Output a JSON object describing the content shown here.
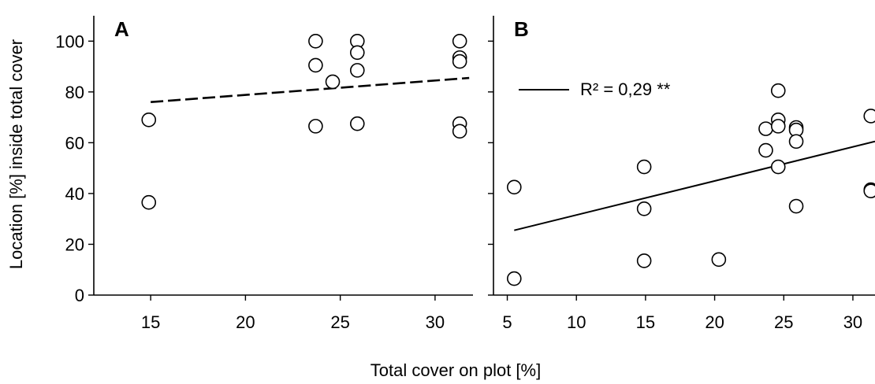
{
  "chart_data": {
    "type": "scatter",
    "xlabel": "Total cover on plot [%]",
    "ylabel": "Location [%] inside total cover",
    "panels": [
      {
        "label": "A",
        "xlim": [
          12,
          32
        ],
        "ylim": [
          0,
          110
        ],
        "xticks": [
          15,
          20,
          25,
          30
        ],
        "yticks": [
          0,
          20,
          40,
          60,
          80,
          100
        ],
        "points": [
          {
            "x": 14.9,
            "y": 69
          },
          {
            "x": 14.9,
            "y": 36.5
          },
          {
            "x": 23.7,
            "y": 100
          },
          {
            "x": 23.7,
            "y": 90.5
          },
          {
            "x": 23.7,
            "y": 66.5
          },
          {
            "x": 24.6,
            "y": 84
          },
          {
            "x": 25.9,
            "y": 100
          },
          {
            "x": 25.9,
            "y": 95.5
          },
          {
            "x": 25.9,
            "y": 88.5
          },
          {
            "x": 25.9,
            "y": 67.5
          },
          {
            "x": 31.3,
            "y": 100
          },
          {
            "x": 31.3,
            "y": 93.5
          },
          {
            "x": 31.3,
            "y": 92
          },
          {
            "x": 31.3,
            "y": 67.5
          },
          {
            "x": 31.3,
            "y": 64.5
          }
        ],
        "trendline": {
          "style": "dashed",
          "x": [
            15,
            31.8
          ],
          "y": [
            76,
            85.5
          ]
        },
        "legend": ""
      },
      {
        "label": "B",
        "xlim": [
          4,
          31.6
        ],
        "ylim": [
          0,
          110
        ],
        "xticks": [
          5,
          10,
          15,
          20,
          25,
          30
        ],
        "yticks": [
          0,
          20,
          40,
          60,
          80,
          100
        ],
        "points": [
          {
            "x": 5.5,
            "y": 42.5
          },
          {
            "x": 5.5,
            "y": 6.5
          },
          {
            "x": 14.9,
            "y": 50.5
          },
          {
            "x": 14.9,
            "y": 34
          },
          {
            "x": 14.9,
            "y": 13.5
          },
          {
            "x": 20.3,
            "y": 14
          },
          {
            "x": 23.7,
            "y": 65.5
          },
          {
            "x": 23.7,
            "y": 57
          },
          {
            "x": 24.6,
            "y": 80.5
          },
          {
            "x": 24.6,
            "y": 69
          },
          {
            "x": 24.6,
            "y": 66.5
          },
          {
            "x": 24.6,
            "y": 50.5
          },
          {
            "x": 25.9,
            "y": 66
          },
          {
            "x": 25.9,
            "y": 65
          },
          {
            "x": 25.9,
            "y": 60.5
          },
          {
            "x": 25.9,
            "y": 35
          },
          {
            "x": 31.3,
            "y": 70.5
          },
          {
            "x": 31.3,
            "y": 41.5
          },
          {
            "x": 31.3,
            "y": 41
          }
        ],
        "trendline": {
          "style": "solid",
          "x": [
            5.5,
            31.6
          ],
          "y": [
            25.5,
            60.5
          ]
        },
        "legend": "R² = 0,29 **"
      }
    ]
  }
}
